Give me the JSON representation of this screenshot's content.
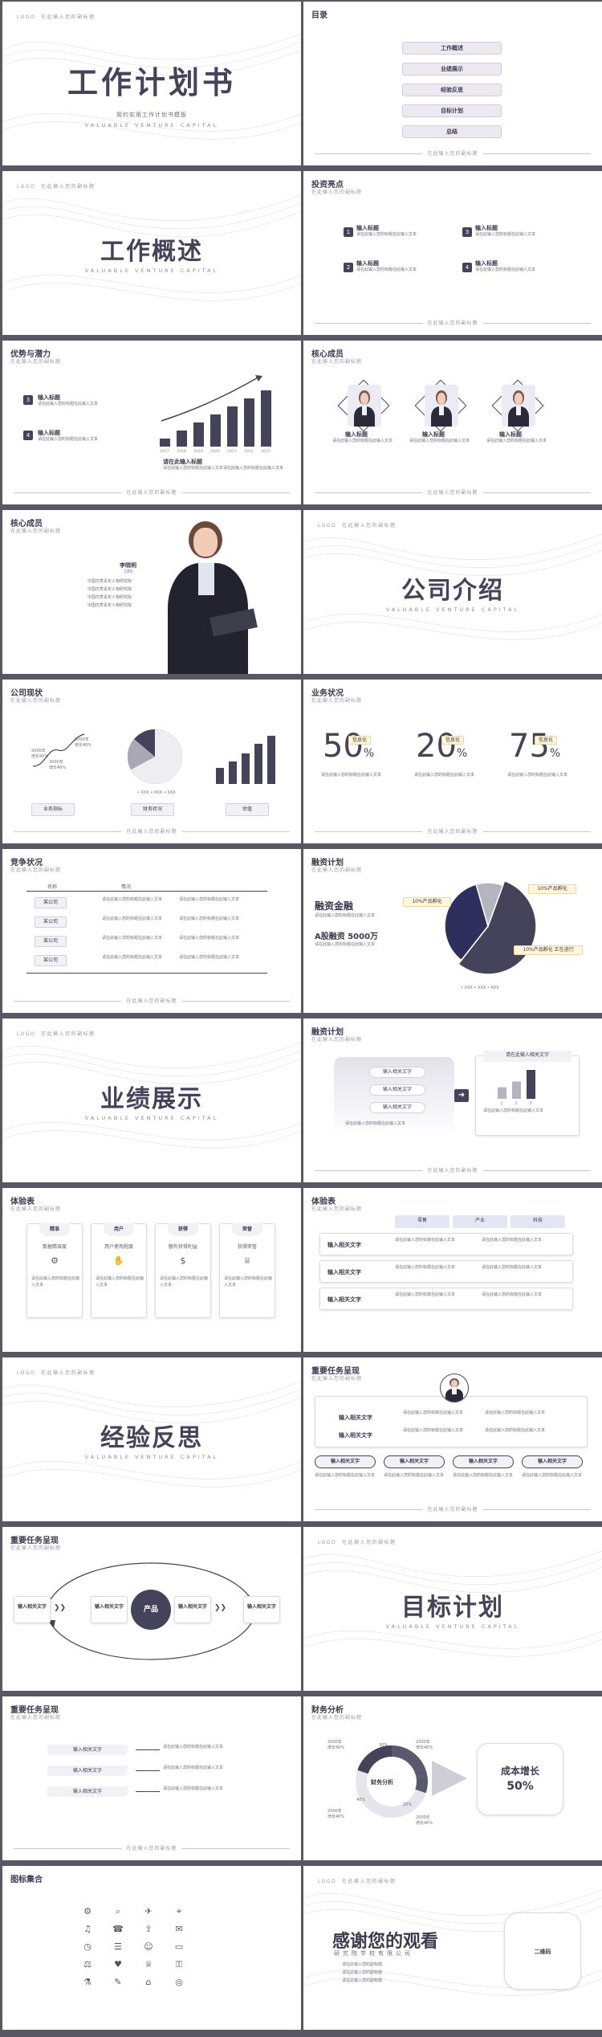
{
  "footer_text": "在此输入您的副标题",
  "logo_text": "LOGO",
  "subtitle_small": "在此输入您的副标题",
  "lorem": "请在此输入您的标题在此输入文本",
  "s1": {
    "logo": "LOGO",
    "logo_sub": "在此输入您的副标题",
    "title": "工作计划书",
    "sub": "简约实用工作计划书模板",
    "en": "VALUABLE VENTURE CAPITAL"
  },
  "s2": {
    "title": "目录",
    "items": [
      "工作概述",
      "业绩展示",
      "经验反思",
      "目标计划",
      "总结"
    ]
  },
  "s3": {
    "logo": "LOGO",
    "logo_sub": "在此输入您的副标题",
    "title": "工作概述",
    "en": "VALUABLE VENTURE CAPITAL"
  },
  "s4": {
    "title": "投资亮点",
    "sub": "在此输入您的副标题",
    "items": [
      {
        "n": "1",
        "h": "输入标题"
      },
      {
        "n": "3",
        "h": "输入标题"
      },
      {
        "n": "2",
        "h": "输入标题"
      },
      {
        "n": "4",
        "h": "输入标题"
      }
    ]
  },
  "s5": {
    "title": "优势与潜力",
    "sub": "在此输入您的副标题",
    "items": [
      {
        "n": "3",
        "h": "输入标题"
      },
      {
        "n": "4",
        "h": "输入标题"
      }
    ],
    "chart_label": "请在此输入标题",
    "chart_text": "请在此输入您的标题在此输入文本请在此输入您的标题在此输入文本",
    "chart_data": {
      "type": "bar",
      "values": [
        1,
        2,
        3,
        4,
        5,
        6,
        7
      ],
      "categories": [
        "2017",
        "2018",
        "2019",
        "2020",
        "2021",
        "2022",
        "2023"
      ]
    }
  },
  "s6": {
    "title": "核心成员",
    "sub": "在此输入您的副标题",
    "members": [
      {
        "h": "输入标题"
      },
      {
        "h": "输入标题"
      },
      {
        "h": "输入标题"
      }
    ]
  },
  "s7": {
    "title": "核心成员",
    "sub": "在此输入您的副标题",
    "name": "李晓明",
    "role": "CEO",
    "lines": [
      "中国优秀青年人物研究院",
      "中国优秀青年人物研究院",
      "中国优秀青年人物研究院",
      "中国优秀青年人物研究院"
    ]
  },
  "s8": {
    "logo": "LOGO",
    "logo_sub": "在此输入您的副标题",
    "title": "公司介绍",
    "en": "VALUABLE VENTURE CAPITAL"
  },
  "s9": {
    "title": "公司现状",
    "sub": "在此输入您的副标题",
    "l1": "2000年",
    "l1b": "增长40%",
    "l2": "2000年",
    "l2b": "增长40%",
    "l3": "2000年",
    "l3b": "增长40%",
    "btns": [
      "业务指标",
      "财务状况",
      "估值"
    ],
    "pie_legend": "• XXX • XXX • XXX"
  },
  "s10": {
    "title": "业务状况",
    "sub": "在此输入您的副标题",
    "kpis": [
      {
        "v": "50",
        "p": "%",
        "tag": "信息化"
      },
      {
        "v": "20",
        "p": "%",
        "tag": "信息化"
      },
      {
        "v": "75",
        "p": "%",
        "tag": "信息化"
      }
    ]
  },
  "s11": {
    "title": "竞争状况",
    "sub": "在此输入您的副标题",
    "cols": [
      "名称",
      "情况"
    ],
    "rows": [
      "某公司",
      "某公司",
      "某公司",
      "某公司"
    ]
  },
  "s12": {
    "title": "融资计划",
    "sub": "在此输入您的副标题",
    "h1": "融资金融",
    "h2": "A股融资 5000万",
    "c1": "10%产品孵化",
    "c2": "10%产品孵化",
    "c3": "10%产品孵化 正在进行",
    "legend": "• XXX • XXX • XXX",
    "chart_data": {
      "type": "pie",
      "values": [
        55,
        35,
        10
      ]
    }
  },
  "s13": {
    "logo": "LOGO",
    "logo_sub": "在此输入您的副标题",
    "title": "业绩展示",
    "en": "VALUABLE VENTURE CAPITAL"
  },
  "s14": {
    "title": "融资计划",
    "sub": "在此输入您的副标题",
    "items": [
      "输入相关文字",
      "输入相关文字",
      "输入相关文字"
    ],
    "box": "请在此输入相关文字",
    "chart_data": {
      "type": "bar",
      "values": [
        2,
        3,
        5
      ],
      "categories": [
        "1",
        "2",
        "3"
      ]
    }
  },
  "s15": {
    "title": "体验表",
    "sub": "在此输入您的副标题",
    "cards": [
      {
        "h": "精准",
        "s": "数据精准度"
      },
      {
        "h": "用户",
        "s": "用户使用程度"
      },
      {
        "h": "获得",
        "s": "额外获得利益"
      },
      {
        "h": "荣誉",
        "s": "获得荣誉"
      }
    ]
  },
  "s16": {
    "title": "体验表",
    "sub": "在此输入您的副标题",
    "cols": [
      "零售",
      "产业",
      "科技"
    ],
    "rows": [
      "输入相关文字",
      "输入相关文字",
      "输入相关文字"
    ]
  },
  "s17": {
    "logo": "LOGO",
    "logo_sub": "在此输入您的副标题",
    "title": "经验反思",
    "en": "VALUABLE VENTURE CAPITAL"
  },
  "s18": {
    "title": "重要任务呈现",
    "sub": "在此输入您的副标题",
    "rows": [
      "输入相关文字",
      "输入相关文字"
    ],
    "pills": [
      "输入相关文字",
      "输入相关文字",
      "输入相关文字",
      "输入相关文字"
    ]
  },
  "s19": {
    "title": "重要任务呈现",
    "sub": "在此输入您的副标题",
    "left": "输入相关文字",
    "a": "输入相关文字",
    "center": "产品",
    "b": "输入相关文字",
    "right": "输入相关文字"
  },
  "s20": {
    "logo": "LOGO",
    "logo_sub": "在此输入您的副标题",
    "title": "目标计划",
    "en": "VALUABLE VENTURE CAPITAL"
  },
  "s21": {
    "title": "重要任务呈现",
    "sub": "在此输入您的副标题",
    "items": [
      "输入相关文字",
      "输入相关文字",
      "输入相关文字"
    ]
  },
  "s22": {
    "title": "财务分析",
    "sub": "在此输入您的副标题",
    "center": "财务分析",
    "box": "成本增长",
    "box_v": "50%",
    "labels": [
      {
        "a": "2000年",
        "b": "增长40%"
      },
      {
        "a": "2000年",
        "b": "增长40%"
      },
      {
        "a": "2000年",
        "b": "增长40%"
      },
      {
        "a": "2000年",
        "b": "增长40%"
      }
    ],
    "pct": [
      "30%",
      "10%",
      "40%",
      "20%"
    ]
  },
  "s23": {
    "title": "图标集合"
  },
  "s24": {
    "logo": "LOGO",
    "logo_sub": "在此输入您的副标题",
    "title": "感谢您的观看",
    "sub": "研究院学校有限公司",
    "qr": "二维码",
    "lines": [
      "请在此输入您的副标题",
      "请在此输入您的副标题",
      "请在此输入您的副标题"
    ]
  }
}
